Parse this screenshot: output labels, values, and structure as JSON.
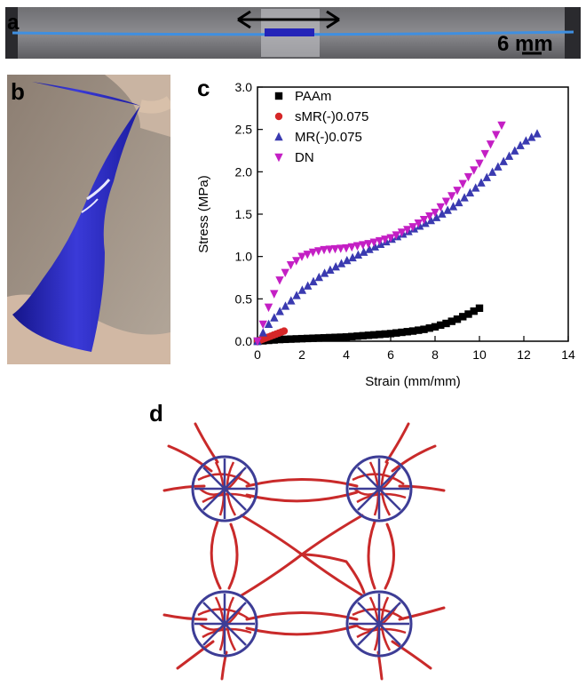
{
  "panel_a": {
    "letter": "a",
    "scale_label": "6 mm"
  },
  "panel_b": {
    "letter": "b"
  },
  "panel_c": {
    "letter": "c"
  },
  "panel_d": {
    "letter": "d"
  },
  "chart_data": {
    "type": "scatter",
    "xlabel": "Strain (mm/mm)",
    "ylabel": "Stress (MPa)",
    "xlim": [
      0,
      14
    ],
    "ylim": [
      0,
      3.0
    ],
    "x_ticks": [
      "0",
      "2",
      "4",
      "6",
      "8",
      "10",
      "12",
      "14"
    ],
    "y_ticks": [
      "0.0",
      "0.5",
      "1.0",
      "1.5",
      "2.0",
      "2.5",
      "3.0"
    ],
    "legend_position": "top-left",
    "grid": false,
    "series": [
      {
        "name": "PAAm",
        "marker": "square",
        "color": "#000000",
        "x": [
          0,
          1,
          2,
          3,
          4,
          5,
          6,
          7,
          7.5,
          8,
          8.5,
          9,
          9.5,
          10
        ],
        "y": [
          0,
          0.02,
          0.03,
          0.04,
          0.05,
          0.07,
          0.09,
          0.12,
          0.14,
          0.17,
          0.21,
          0.26,
          0.32,
          0.39
        ]
      },
      {
        "name": "sMR(-)0.075",
        "marker": "circle",
        "color": "#d62728",
        "x": [
          0,
          0.3,
          0.6,
          0.9,
          1.2
        ],
        "y": [
          0,
          0.03,
          0.06,
          0.09,
          0.12
        ]
      },
      {
        "name": "MR(-)0.075",
        "marker": "triangle-up",
        "color": "#3a3ab0",
        "x": [
          0,
          0.5,
          1,
          2,
          3,
          4,
          5,
          6,
          7,
          8,
          9,
          10,
          11,
          12,
          12.6
        ],
        "y": [
          0,
          0.2,
          0.35,
          0.6,
          0.8,
          0.95,
          1.08,
          1.2,
          1.32,
          1.45,
          1.62,
          1.85,
          2.1,
          2.35,
          2.45
        ]
      },
      {
        "name": "DN",
        "marker": "triangle-down",
        "color": "#c41fc4",
        "x": [
          0,
          0.25,
          0.5,
          1,
          1.5,
          2,
          2.5,
          3,
          4,
          5,
          6,
          7,
          8,
          9,
          10,
          11
        ],
        "y": [
          0,
          0.2,
          0.4,
          0.72,
          0.9,
          1.0,
          1.05,
          1.08,
          1.1,
          1.15,
          1.22,
          1.35,
          1.52,
          1.78,
          2.1,
          2.55
        ]
      }
    ]
  }
}
